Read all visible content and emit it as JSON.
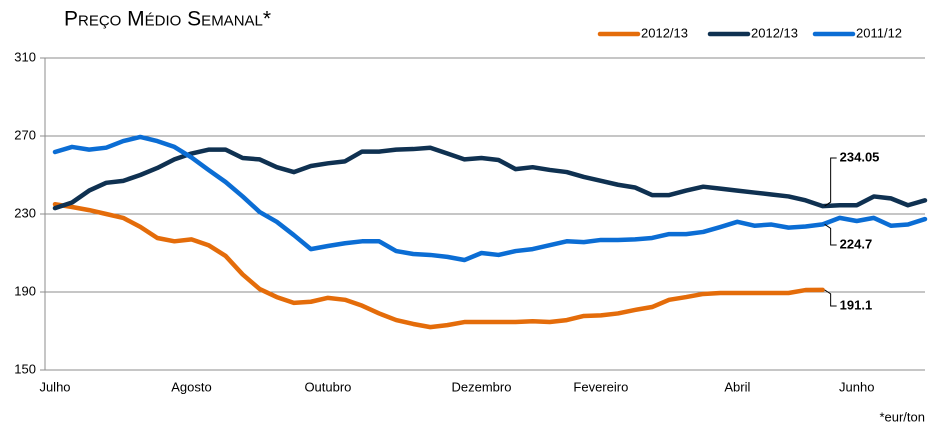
{
  "chart_data": {
    "type": "line",
    "title": "Preço Médio Semanal*",
    "footnote": "*eur/ton",
    "categories": [
      "Julho",
      null,
      null,
      null,
      null,
      null,
      null,
      null,
      "Agosto",
      null,
      null,
      null,
      null,
      null,
      null,
      null,
      "Outubro",
      null,
      null,
      null,
      null,
      null,
      null,
      null,
      null,
      "Dezembro",
      null,
      null,
      null,
      null,
      null,
      null,
      "Fevereiro",
      null,
      null,
      null,
      null,
      null,
      null,
      null,
      "Abril",
      null,
      null,
      null,
      null,
      null,
      null,
      "Junho",
      null,
      null,
      null,
      null
    ],
    "ylim": [
      150,
      310
    ],
    "yticks": [
      150,
      190,
      230,
      270,
      310
    ],
    "grid": true,
    "legend": "top-right",
    "series": [
      {
        "name": "2012/13",
        "color": "#e46c0a",
        "values": [
          235,
          233.6,
          232,
          230,
          228,
          223.4,
          217.7,
          216,
          217,
          214,
          208.5,
          199,
          191.5,
          187.4,
          184.4,
          185,
          187,
          186,
          183,
          179,
          175.6,
          173.6,
          172,
          173,
          174.6,
          174.6,
          174.6,
          174.6,
          175,
          174.6,
          175.6,
          177.7,
          178,
          179,
          180.8,
          182.3,
          186,
          187.4,
          189,
          189.5,
          189.5,
          189.5,
          189.5,
          189.5,
          191,
          191.1,
          null,
          null,
          null,
          null,
          null,
          null
        ]
      },
      {
        "name": "2012/13",
        "color": "#0f3151",
        "values": [
          233,
          235.9,
          242,
          246,
          247,
          250,
          253.6,
          258,
          261,
          263,
          263,
          258.7,
          258,
          254,
          251.5,
          254.6,
          256,
          257,
          262,
          262,
          263,
          263.3,
          264,
          261,
          258,
          258.7,
          257.7,
          253,
          254,
          252.6,
          251.5,
          249,
          247,
          245,
          243.6,
          239.7,
          239.7,
          242,
          244,
          243,
          242,
          241,
          240,
          239,
          237,
          234.05,
          234.5,
          234.5,
          239,
          238,
          234.5,
          237
        ]
      },
      {
        "name": "2011/12",
        "color": "#0b6dd4",
        "values": [
          261.8,
          264.4,
          263,
          264,
          267.4,
          269.5,
          267.4,
          264.4,
          259,
          252.6,
          246.4,
          239,
          231,
          226,
          219.2,
          212,
          213.6,
          215,
          216,
          216,
          211,
          209.5,
          209,
          208,
          206.4,
          210,
          209,
          211,
          212,
          214,
          216,
          215.6,
          216.7,
          216.7,
          217,
          217.7,
          219.7,
          219.7,
          220.8,
          223.3,
          226,
          224,
          224.6,
          223,
          223.6,
          224.7,
          228,
          226.4,
          228,
          224,
          224.6,
          227.4
        ]
      }
    ],
    "annotations": [
      "234.05",
      "224.7",
      "191.1"
    ]
  }
}
